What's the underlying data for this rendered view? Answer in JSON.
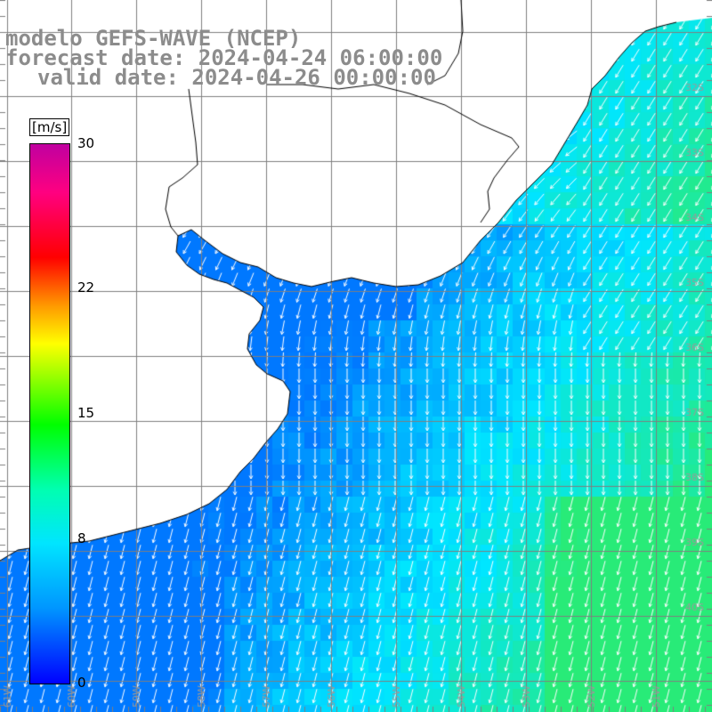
{
  "title": {
    "line1": "modelo GEFS-WAVE (NCEP)",
    "line2": "forecast date: 2024-04-24 06:00:00",
    "line3": "valid date: 2024-04-26 00:00:00"
  },
  "colorbar": {
    "unit": "[m/s]",
    "ticks": [
      "30",
      "22",
      "15",
      "8",
      "0"
    ],
    "tick_values": [
      30,
      22,
      15,
      8,
      0
    ],
    "stops": [
      "#0000ff",
      "#0096ff",
      "#00e5ff",
      "#00ffb0",
      "#00ff00",
      "#9aff00",
      "#ffff00",
      "#ff9a00",
      "#ff0000",
      "#ff0080",
      "#c000a0"
    ]
  },
  "lat_labels": [
    "32S",
    "33S",
    "34S",
    "35S",
    "36S",
    "37S",
    "38S",
    "39S",
    "40S"
  ],
  "lon_labels": [
    "61W",
    "60W",
    "59W",
    "58W",
    "57W",
    "56W",
    "55W",
    "54W",
    "53W",
    "52W",
    "51W"
  ],
  "colors": {
    "grid": "#7f7f7f",
    "coast": "#000000",
    "arrow": "#ffffff",
    "land": "#ffffff",
    "title": "#8c8c8c"
  },
  "field": {
    "variable": "wind speed",
    "unit": "m/s",
    "arrow_direction": "southwest to south"
  }
}
